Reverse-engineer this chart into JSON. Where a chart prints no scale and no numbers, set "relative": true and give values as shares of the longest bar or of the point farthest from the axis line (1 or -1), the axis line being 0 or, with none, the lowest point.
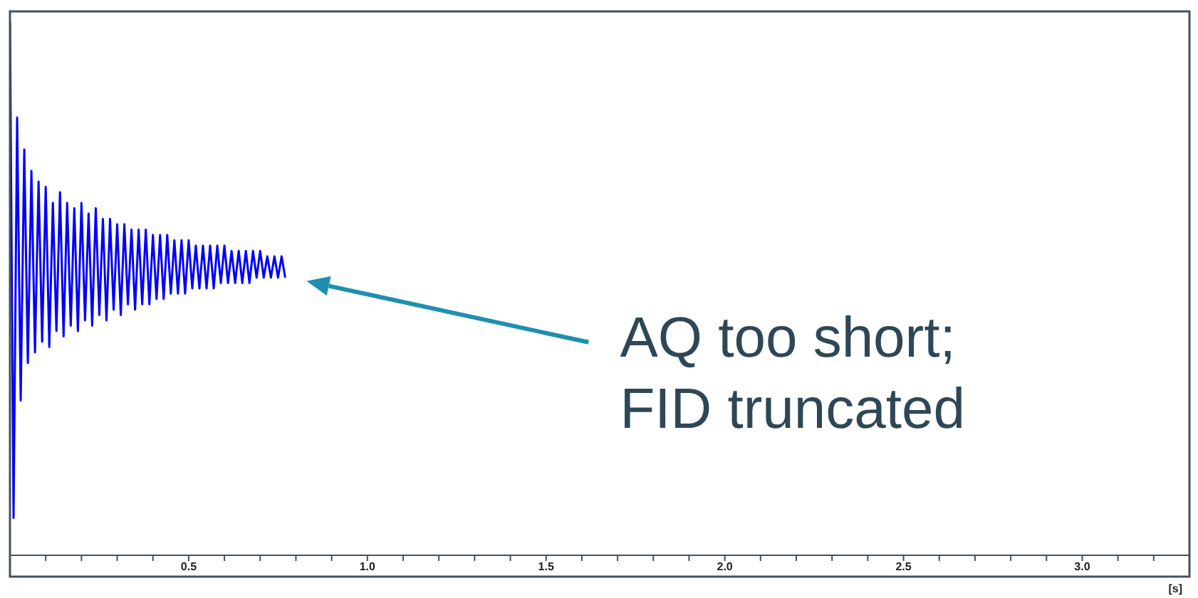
{
  "chart_data": {
    "type": "line",
    "relative": true,
    "xlabel": "[s]",
    "xlim": [
      0,
      3.3
    ],
    "xticks": [
      {
        "value": 0.1,
        "label": null
      },
      {
        "value": 0.2,
        "label": null
      },
      {
        "value": 0.3,
        "label": null
      },
      {
        "value": 0.4,
        "label": null
      },
      {
        "value": 0.5,
        "label": "0.5"
      },
      {
        "value": 0.6,
        "label": null
      },
      {
        "value": 0.7,
        "label": null
      },
      {
        "value": 0.8,
        "label": null
      },
      {
        "value": 0.9,
        "label": null
      },
      {
        "value": 1,
        "label": "1.0"
      },
      {
        "value": 1.1,
        "label": null
      },
      {
        "value": 1.2,
        "label": null
      },
      {
        "value": 1.3,
        "label": null
      },
      {
        "value": 1.4,
        "label": null
      },
      {
        "value": 1.5,
        "label": "1.5"
      },
      {
        "value": 1.6,
        "label": null
      },
      {
        "value": 1.7,
        "label": null
      },
      {
        "value": 1.8,
        "label": null
      },
      {
        "value": 1.9,
        "label": null
      },
      {
        "value": 2,
        "label": "2.0"
      },
      {
        "value": 2.1,
        "label": null
      },
      {
        "value": 2.2,
        "label": null
      },
      {
        "value": 2.3,
        "label": null
      },
      {
        "value": 2.4,
        "label": null
      },
      {
        "value": 2.5,
        "label": "2.5"
      },
      {
        "value": 2.6,
        "label": null
      },
      {
        "value": 2.7,
        "label": null
      },
      {
        "value": 2.8,
        "label": null
      },
      {
        "value": 2.9,
        "label": null
      },
      {
        "value": 3,
        "label": "3.0"
      },
      {
        "value": 3.1,
        "label": null
      },
      {
        "value": 3.2,
        "label": null
      }
    ],
    "x": [
      0,
      0.01,
      0.02,
      0.03,
      0.04,
      0.05,
      0.06,
      0.07,
      0.08,
      0.09,
      0.1,
      0.11,
      0.12,
      0.13,
      0.14,
      0.15,
      0.16,
      0.17,
      0.18,
      0.19,
      0.2,
      0.21,
      0.22,
      0.23,
      0.24,
      0.25,
      0.26,
      0.27,
      0.28,
      0.29,
      0.3,
      0.31,
      0.32,
      0.33,
      0.34,
      0.35,
      0.36,
      0.37,
      0.38,
      0.39,
      0.4,
      0.41,
      0.42,
      0.43,
      0.44,
      0.45,
      0.46,
      0.47,
      0.48,
      0.49,
      0.5,
      0.51,
      0.52,
      0.53,
      0.54,
      0.55,
      0.56,
      0.57,
      0.58,
      0.59,
      0.6,
      0.61,
      0.62,
      0.63,
      0.64,
      0.65,
      0.66,
      0.67,
      0.68,
      0.69,
      0.7,
      0.71,
      0.72,
      0.73,
      0.74,
      0.75,
      0.76,
      0.77
    ],
    "series": [
      {
        "color": "#0000ff",
        "values": [
          1.0,
          0.07,
          0.82,
          0.29,
          0.76,
          0.36,
          0.72,
          0.38,
          0.7,
          0.4,
          0.69,
          0.39,
          0.66,
          0.42,
          0.68,
          0.41,
          0.66,
          0.43,
          0.65,
          0.42,
          0.66,
          0.44,
          0.64,
          0.43,
          0.65,
          0.45,
          0.63,
          0.44,
          0.63,
          0.46,
          0.62,
          0.45,
          0.62,
          0.47,
          0.61,
          0.46,
          0.61,
          0.47,
          0.61,
          0.47,
          0.6,
          0.48,
          0.6,
          0.48,
          0.6,
          0.49,
          0.59,
          0.49,
          0.59,
          0.49,
          0.59,
          0.5,
          0.58,
          0.5,
          0.58,
          0.5,
          0.58,
          0.5,
          0.58,
          0.51,
          0.58,
          0.51,
          0.57,
          0.51,
          0.57,
          0.51,
          0.57,
          0.51,
          0.57,
          0.52,
          0.57,
          0.52,
          0.56,
          0.52,
          0.56,
          0.52,
          0.56,
          0.52
        ]
      }
    ],
    "annotations": [
      "AQ too short;\nFID truncated"
    ]
  }
}
